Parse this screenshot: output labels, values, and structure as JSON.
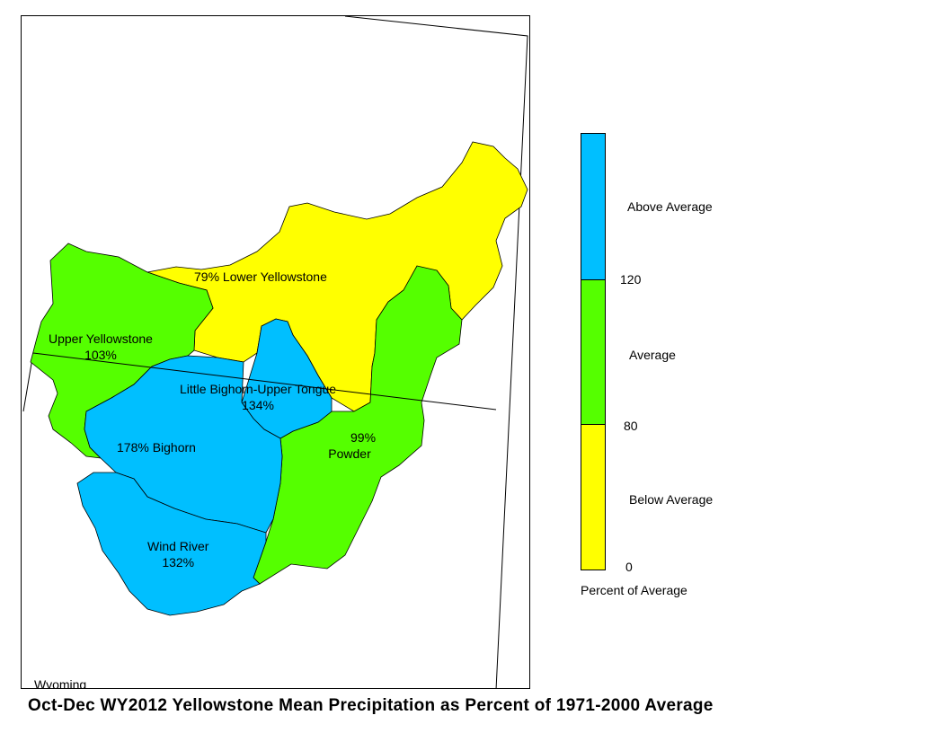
{
  "colors": {
    "above": "#00bfff",
    "average": "#55ff00",
    "below": "#ffff00"
  },
  "basins": [
    {
      "id": "lower-yellowstone",
      "label": "79% Lower Yellowstone",
      "percent": 79,
      "category": "below"
    },
    {
      "id": "upper-yellowstone",
      "name": "Upper Yellowstone",
      "value": "103%",
      "percent": 103,
      "category": "average"
    },
    {
      "id": "little-bighorn",
      "name": "Little Bighorn-Upper Tongue",
      "value": "134%",
      "percent": 134,
      "category": "above"
    },
    {
      "id": "bighorn",
      "label": "178%  Bighorn",
      "percent": 178,
      "category": "above"
    },
    {
      "id": "powder",
      "name": "Powder",
      "value": "99%",
      "percent": 99,
      "category": "average"
    },
    {
      "id": "wind-river",
      "name": "Wind River",
      "value": "132%",
      "percent": 132,
      "category": "above"
    }
  ],
  "state_label": "Wyoming",
  "legend": {
    "categories": [
      {
        "label": "Above Average",
        "color": "#00bfff"
      },
      {
        "label": "Average",
        "color": "#55ff00"
      },
      {
        "label": "Below Average",
        "color": "#ffff00"
      }
    ],
    "breaks": [
      "120",
      "80",
      "0"
    ],
    "title": "Percent of Average"
  },
  "caption": "Oct-Dec WY2012 Yellowstone Mean Precipitation as Percent of 1971-2000 Average"
}
